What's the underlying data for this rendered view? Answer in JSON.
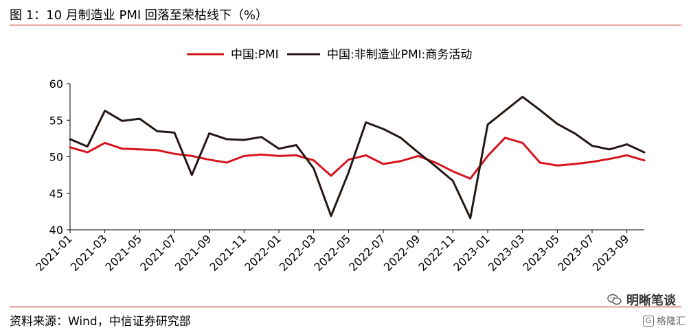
{
  "header": {
    "title": "图 1：10 月制造业 PMI 回落至荣枯线下（%）"
  },
  "footer": {
    "source": "资料来源：Wind，中信证券研究部",
    "watermark": "明晰笔谈",
    "badge": "格隆汇"
  },
  "colors": {
    "rule": "#c00000",
    "series_pmi": "#d7141e",
    "series_nonmfg": "#231815"
  },
  "chart_data": {
    "type": "line",
    "title": "",
    "xlabel": "",
    "ylabel": "",
    "ylim": [
      40,
      60
    ],
    "yticks": [
      40,
      45,
      50,
      55,
      60
    ],
    "grid": false,
    "legend": "top-center",
    "x": [
      "2021-01",
      "2021-02",
      "2021-03",
      "2021-04",
      "2021-05",
      "2021-06",
      "2021-07",
      "2021-08",
      "2021-09",
      "2021-10",
      "2021-11",
      "2021-12",
      "2022-01",
      "2022-02",
      "2022-03",
      "2022-04",
      "2022-05",
      "2022-06",
      "2022-07",
      "2022-08",
      "2022-09",
      "2022-10",
      "2022-11",
      "2022-12",
      "2023-01",
      "2023-02",
      "2023-03",
      "2023-04",
      "2023-05",
      "2023-06",
      "2023-07",
      "2023-08",
      "2023-09",
      "2023-10"
    ],
    "xtick_labels": [
      "2021-01",
      "2021-03",
      "2021-05",
      "2021-07",
      "2021-09",
      "2021-11",
      "2022-01",
      "2022-03",
      "2022-05",
      "2022-07",
      "2022-09",
      "2022-11",
      "2023-01",
      "2023-03",
      "2023-05",
      "2023-07",
      "2023-09"
    ],
    "series": [
      {
        "name": "中国:PMI",
        "color": "#d7141e",
        "values": [
          51.3,
          50.6,
          51.9,
          51.1,
          51.0,
          50.9,
          50.4,
          50.1,
          49.6,
          49.2,
          50.1,
          50.3,
          50.1,
          50.2,
          49.5,
          47.4,
          49.6,
          50.2,
          49.0,
          49.4,
          50.1,
          49.2,
          48.0,
          47.0,
          50.1,
          52.6,
          51.9,
          49.2,
          48.8,
          49.0,
          49.3,
          49.7,
          50.2,
          49.5
        ]
      },
      {
        "name": "中国:非制造业PMI:商务活动",
        "color": "#231815",
        "values": [
          52.4,
          51.4,
          56.3,
          54.9,
          55.2,
          53.5,
          53.3,
          47.5,
          53.2,
          52.4,
          52.3,
          52.7,
          51.1,
          51.6,
          48.4,
          41.9,
          47.8,
          54.7,
          53.8,
          52.6,
          50.6,
          48.7,
          46.7,
          41.6,
          54.4,
          56.3,
          58.2,
          56.4,
          54.5,
          53.2,
          51.5,
          51.0,
          51.7,
          50.6
        ]
      }
    ]
  }
}
